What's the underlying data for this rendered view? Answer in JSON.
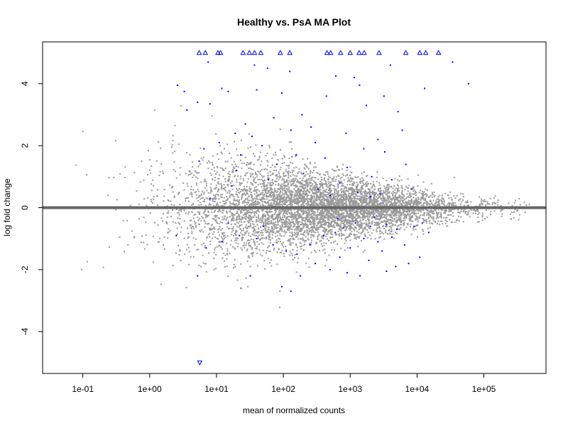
{
  "chart_data": {
    "type": "scatter",
    "title": "Healthy vs. PsA MA Plot",
    "xlabel": "mean of normalized counts",
    "ylabel": "log fold change",
    "x_scale": "log10",
    "xlim": [
      0.025,
      850000
    ],
    "ylim": [
      -5.35,
      5.35
    ],
    "x_ticks": [
      0.1,
      1,
      10,
      100,
      1000,
      10000,
      100000
    ],
    "x_tick_labels": [
      "1e-01",
      "1e+00",
      "1e+01",
      "1e+02",
      "1e+03",
      "1e+04",
      "1e+05"
    ],
    "y_ticks": [
      -4,
      -2,
      0,
      2,
      4
    ],
    "y_tick_labels": [
      "-4",
      "-2",
      "0",
      "2",
      "4"
    ],
    "reference_line_y": 0,
    "grid": false,
    "legend": "none",
    "colors": {
      "nonsignificant": "#9a9a9a",
      "significant": "#0000ff",
      "reference_line": "#666666",
      "title": "#000000"
    },
    "series": [
      {
        "role": "significant-capped-up",
        "marker": "triangle-up",
        "points": [
          [
            5.5,
            5
          ],
          [
            6.8,
            5
          ],
          [
            10.5,
            5
          ],
          [
            11.5,
            5
          ],
          [
            25,
            5
          ],
          [
            31,
            5
          ],
          [
            37,
            5
          ],
          [
            46,
            5
          ],
          [
            90,
            5
          ],
          [
            125,
            5
          ],
          [
            450,
            5
          ],
          [
            510,
            5
          ],
          [
            720,
            5
          ],
          [
            1000,
            5
          ],
          [
            1360,
            5
          ],
          [
            1620,
            5
          ],
          [
            2700,
            5
          ],
          [
            6800,
            5
          ],
          [
            11000,
            5
          ],
          [
            13500,
            5
          ],
          [
            21000,
            5
          ]
        ]
      },
      {
        "role": "significant-capped-down",
        "marker": "triangle-down",
        "points": [
          [
            5.6,
            -5
          ]
        ]
      },
      {
        "role": "significant-labeled",
        "marker": "point",
        "points": [
          [
            7.5,
            4.7
          ],
          [
            37,
            4.6
          ],
          [
            58,
            4.5
          ],
          [
            125,
            4.4
          ],
          [
            610,
            4.25
          ],
          [
            1150,
            4.2
          ],
          [
            4000,
            4.6
          ],
          [
            34000,
            4.7
          ],
          [
            59000,
            4.0
          ],
          [
            13000,
            3.85
          ],
          [
            3200,
            3.6
          ],
          [
            1380,
            3.95
          ],
          [
            2.6,
            3.95
          ],
          [
            3.3,
            3.75
          ],
          [
            12,
            3.85
          ],
          [
            15,
            3.75
          ],
          [
            40,
            3.8
          ],
          [
            95,
            3.7
          ],
          [
            440,
            3.6
          ],
          [
            5.2,
            3.4
          ],
          [
            8,
            3.35
          ],
          [
            3.6,
            3.15
          ],
          [
            1750,
            3.3
          ],
          [
            5200,
            3.1
          ],
          [
            190,
            3.0
          ],
          [
            27,
            2.7
          ],
          [
            72,
            2.9
          ],
          [
            260,
            2.6
          ],
          [
            6000,
            2.5
          ],
          [
            19,
            2.4
          ],
          [
            34,
            2.3
          ],
          [
            130,
            2.5
          ],
          [
            870,
            2.4
          ],
          [
            2600,
            2.2
          ],
          [
            11,
            2.1
          ],
          [
            48,
            2.0
          ],
          [
            300,
            2.1
          ],
          [
            1600,
            1.9
          ],
          [
            3300,
            1.8
          ],
          [
            6.5,
            1.9
          ],
          [
            23,
            1.7
          ],
          [
            155,
            1.7
          ],
          [
            420,
            1.6
          ],
          [
            5.5,
            1.5
          ],
          [
            80,
            1.4
          ],
          [
            900,
            1.3
          ],
          [
            6800,
            1.4
          ],
          [
            20,
            1.2
          ],
          [
            200,
            1.1
          ],
          [
            2100,
            1.0
          ],
          [
            60,
            0.9
          ],
          [
            700,
            0.8
          ],
          [
            4200,
            0.9
          ],
          [
            17,
            0.7
          ],
          [
            330,
            0.6
          ],
          [
            1300,
            0.5
          ],
          [
            2800,
            0.45
          ],
          [
            8200,
            0.6
          ],
          [
            500,
            0.4
          ],
          [
            2000,
            0.35
          ],
          [
            1200,
            -0.5
          ],
          [
            2000,
            -0.6
          ],
          [
            3500,
            -0.55
          ],
          [
            5000,
            -0.7
          ],
          [
            800,
            -0.65
          ],
          [
            600,
            -0.8
          ],
          [
            9000,
            -0.6
          ],
          [
            400,
            -0.9
          ],
          [
            1600,
            -1.0
          ],
          [
            2600,
            -1.1
          ],
          [
            4200,
            -0.95
          ],
          [
            250,
            -1.2
          ],
          [
            1000,
            -1.3
          ],
          [
            3000,
            -1.4
          ],
          [
            6500,
            -1.2
          ],
          [
            160,
            -1.5
          ],
          [
            700,
            -1.6
          ],
          [
            1900,
            -1.7
          ],
          [
            70,
            -1.2
          ],
          [
            300,
            -1.8
          ],
          [
            110,
            -1.4
          ],
          [
            40,
            -1.0
          ],
          [
            22,
            -0.9
          ],
          [
            12,
            -1.1
          ],
          [
            4800,
            -1.9
          ],
          [
            7500,
            -1.8
          ],
          [
            500,
            -2.0
          ],
          [
            900,
            -2.1
          ],
          [
            1400,
            -2.2
          ],
          [
            180,
            -2.2
          ],
          [
            32,
            -2.2
          ],
          [
            5.2,
            -2.2
          ],
          [
            95,
            -2.55
          ],
          [
            130,
            -2.7
          ],
          [
            3500,
            -2.05
          ],
          [
            12000,
            -0.5
          ],
          [
            15000,
            -0.8
          ],
          [
            2300,
            -0.3
          ],
          [
            650,
            -0.35
          ],
          [
            11000,
            -1.6
          ],
          [
            50,
            -0.6
          ],
          [
            15,
            -0.5
          ],
          [
            7,
            -1.3
          ],
          [
            2.5,
            -0.9
          ],
          [
            8,
            0.3
          ]
        ]
      }
    ],
    "background_cloud": {
      "description_none": "",
      "count_shown": 6200,
      "x_range": [
        0.04,
        500000
      ],
      "y_range": [
        -3.5,
        4.0
      ],
      "marker": "point"
    }
  }
}
